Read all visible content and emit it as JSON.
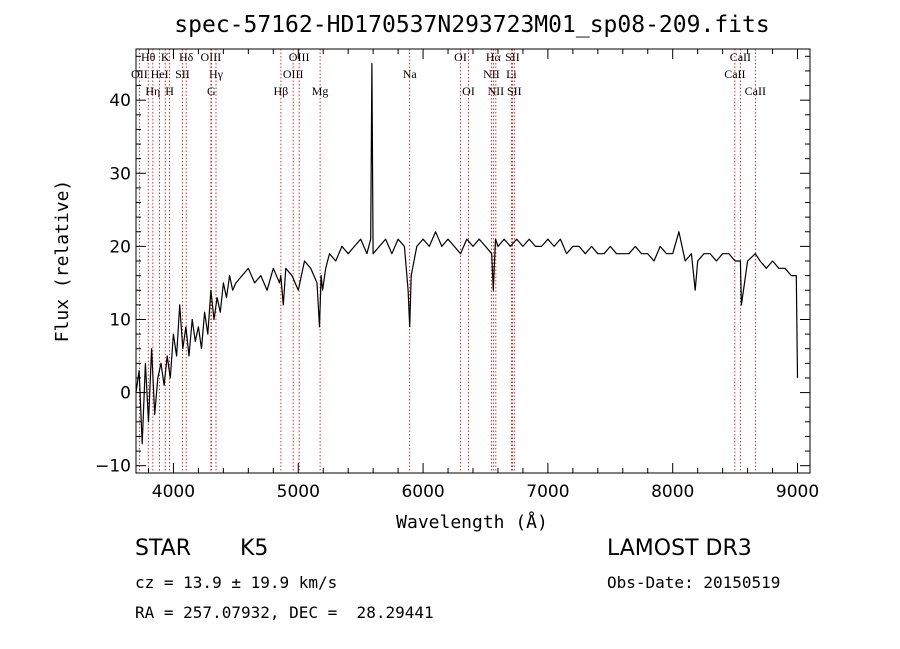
{
  "chart_data": {
    "type": "line",
    "title": "spec-57162-HD170537N293723M01_sp08-209.fits",
    "xlabel": "Wavelength (Å)",
    "ylabel": "Flux (relative)",
    "xlim": [
      3700,
      9100
    ],
    "ylim": [
      -11,
      47
    ],
    "xticks": [
      4000,
      5000,
      6000,
      7000,
      8000,
      9000
    ],
    "yticks": [
      -10,
      0,
      10,
      20,
      30,
      40
    ],
    "series": [
      {
        "name": "spectrum",
        "x": [
          3700,
          3725,
          3750,
          3775,
          3800,
          3825,
          3850,
          3875,
          3900,
          3925,
          3950,
          3975,
          4000,
          4025,
          4050,
          4075,
          4100,
          4125,
          4150,
          4175,
          4200,
          4225,
          4250,
          4275,
          4300,
          4325,
          4350,
          4375,
          4400,
          4425,
          4450,
          4475,
          4500,
          4550,
          4600,
          4650,
          4700,
          4750,
          4800,
          4850,
          4860,
          4880,
          4900,
          4950,
          5000,
          5050,
          5100,
          5150,
          5170,
          5183,
          5195,
          5220,
          5250,
          5300,
          5350,
          5400,
          5450,
          5500,
          5550,
          5580,
          5590,
          5600,
          5650,
          5700,
          5750,
          5800,
          5850,
          5880,
          5893,
          5905,
          5950,
          6000,
          6050,
          6100,
          6150,
          6200,
          6250,
          6300,
          6350,
          6400,
          6450,
          6500,
          6550,
          6563,
          6580,
          6600,
          6650,
          6700,
          6750,
          6800,
          6850,
          6900,
          6950,
          7000,
          7050,
          7100,
          7150,
          7200,
          7250,
          7300,
          7350,
          7400,
          7450,
          7500,
          7550,
          7600,
          7650,
          7700,
          7750,
          7800,
          7850,
          7900,
          7950,
          8000,
          8050,
          8100,
          8150,
          8180,
          8200,
          8250,
          8300,
          8350,
          8400,
          8450,
          8500,
          8542,
          8550,
          8600,
          8662,
          8700,
          8750,
          8800,
          8850,
          8900,
          8950,
          8990,
          9000
        ],
        "values": [
          0,
          3,
          -7,
          4,
          -4,
          6,
          -3,
          2,
          4,
          1,
          5,
          2,
          8,
          5,
          12,
          6,
          9,
          5,
          10,
          7,
          9,
          6,
          11,
          8,
          14,
          10,
          13,
          11,
          15,
          13,
          16,
          14,
          15,
          16,
          17,
          15,
          16,
          14,
          17,
          15,
          16,
          12,
          17,
          16,
          14,
          18,
          17,
          15,
          9,
          16,
          14,
          17,
          19,
          18,
          20,
          19,
          20,
          21,
          19,
          21,
          45,
          19,
          20,
          21,
          19,
          21,
          20,
          14,
          9,
          16,
          20,
          21,
          20,
          22,
          20,
          21,
          20,
          19,
          21,
          20,
          21,
          20,
          19,
          14,
          21,
          20,
          21,
          20,
          21,
          20,
          21,
          20,
          20,
          21,
          20,
          21,
          19,
          20,
          20,
          19,
          20,
          19,
          19,
          20,
          19,
          19,
          19,
          20,
          19,
          19,
          18,
          20,
          19,
          19,
          22,
          18,
          19,
          14,
          18,
          19,
          19,
          18,
          19,
          19,
          18,
          18,
          12,
          18,
          19,
          18,
          17,
          18,
          17,
          17,
          16,
          16,
          2
        ],
        "color": "#000000"
      }
    ],
    "lines": [
      {
        "label": "Hθ",
        "wavelength": 3798,
        "row": 1
      },
      {
        "label": "OII",
        "wavelength": 3727,
        "row": 2
      },
      {
        "label": "Hη",
        "wavelength": 3835,
        "row": 3
      },
      {
        "label": "HeI",
        "wavelength": 3889,
        "row": 2
      },
      {
        "label": "K",
        "wavelength": 3934,
        "row": 1
      },
      {
        "label": "H",
        "wavelength": 3969,
        "row": 3
      },
      {
        "label": "SII",
        "wavelength": 4072,
        "row": 2
      },
      {
        "label": "Hδ",
        "wavelength": 4102,
        "row": 1
      },
      {
        "label": "OIII",
        "wavelength": 4300,
        "row": 1
      },
      {
        "label": "Hγ",
        "wavelength": 4341,
        "row": 2
      },
      {
        "label": "G",
        "wavelength": 4304,
        "row": 3
      },
      {
        "label": "Hβ",
        "wavelength": 4861,
        "row": 3
      },
      {
        "label": "OIII",
        "wavelength": 4959,
        "row": 2
      },
      {
        "label": "OIII",
        "wavelength": 5007,
        "row": 1
      },
      {
        "label": "Mg",
        "wavelength": 5175,
        "row": 3
      },
      {
        "label": "Na",
        "wavelength": 5893,
        "row": 2
      },
      {
        "label": "OI",
        "wavelength": 6300,
        "row": 1
      },
      {
        "label": "OI",
        "wavelength": 6364,
        "row": 3
      },
      {
        "label": "Hα",
        "wavelength": 6563,
        "row": 1
      },
      {
        "label": "NII",
        "wavelength": 6548,
        "row": 2
      },
      {
        "label": "NII",
        "wavelength": 6583,
        "row": 3
      },
      {
        "label": "SII",
        "wavelength": 6716,
        "row": 1
      },
      {
        "label": "Li",
        "wavelength": 6708,
        "row": 2
      },
      {
        "label": "SII",
        "wavelength": 6731,
        "row": 3
      },
      {
        "label": "CaII",
        "wavelength": 8542,
        "row": 1
      },
      {
        "label": "CaII",
        "wavelength": 8498,
        "row": 2
      },
      {
        "label": "CaII",
        "wavelength": 8662,
        "row": 3
      }
    ],
    "line_color": "#cc0000"
  },
  "footer": {
    "object_class": "STAR",
    "subclass": "K5",
    "survey": "LAMOST DR3",
    "cz": "cz = 13.9 ± 19.9 km/s",
    "obs_date": "Obs-Date: 20150519",
    "radec": "RA = 257.07932, DEC =  28.29441"
  }
}
